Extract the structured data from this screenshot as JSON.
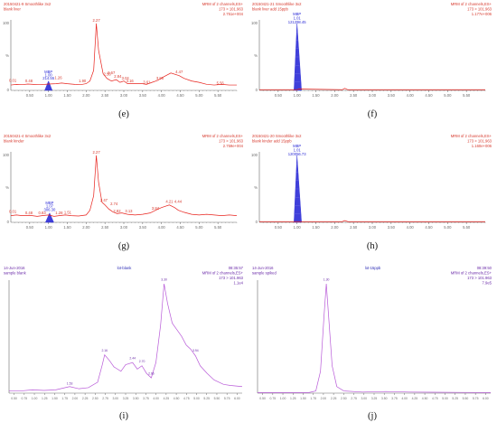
{
  "colors": {
    "trace": "#e8221c",
    "peak": "#2b2bd6",
    "axis": "#6a6a6a",
    "text_red": "#d73a2e",
    "text_blue": "#2d2db5",
    "trace_purple": "#b85ad8",
    "text_purple": "#6a2aa8"
  },
  "chart_data": [
    {
      "id": "e",
      "caption": "(e)",
      "type": "line",
      "style": "masslynx",
      "header_left": [
        "20150421-9 Smoothlike 3x2",
        "blank liver"
      ],
      "header_right": [
        "MRM of 2 channels,ES+",
        "173 > 101.963",
        "2.751e+004"
      ],
      "xlim": [
        0,
        6.0
      ],
      "ylim": [
        0,
        100
      ],
      "xticks": [
        "0.50",
        "1.00",
        "1.50",
        "2.00",
        "2.50",
        "3.00",
        "3.50",
        "4.00",
        "4.50",
        "5.00",
        "5.50"
      ],
      "y_axis_labels": [
        "100",
        "%",
        "0"
      ],
      "trace_color": "trace",
      "points": [
        [
          0,
          8
        ],
        [
          0.15,
          9
        ],
        [
          0.3,
          8.5
        ],
        [
          0.45,
          9.5
        ],
        [
          0.6,
          9
        ],
        [
          0.75,
          8.5
        ],
        [
          0.9,
          9
        ],
        [
          1.0,
          9.5
        ],
        [
          1.2,
          10
        ],
        [
          1.35,
          11
        ],
        [
          1.5,
          10
        ],
        [
          1.7,
          9
        ],
        [
          1.85,
          8.5
        ],
        [
          2.0,
          10
        ],
        [
          2.1,
          14
        ],
        [
          2.2,
          30
        ],
        [
          2.27,
          100
        ],
        [
          2.33,
          60
        ],
        [
          2.45,
          25
        ],
        [
          2.55,
          18
        ],
        [
          2.67,
          14
        ],
        [
          2.8,
          16
        ],
        [
          2.9,
          12
        ],
        [
          3.0,
          14
        ],
        [
          3.1,
          10
        ],
        [
          3.3,
          10
        ],
        [
          3.5,
          10
        ],
        [
          3.6,
          9
        ],
        [
          3.75,
          12
        ],
        [
          3.9,
          15
        ],
        [
          4.05,
          20
        ],
        [
          4.25,
          26
        ],
        [
          4.47,
          22
        ],
        [
          4.6,
          18
        ],
        [
          4.8,
          14
        ],
        [
          5.0,
          12
        ],
        [
          5.2,
          9
        ],
        [
          5.4,
          8
        ],
        [
          5.6,
          9
        ],
        [
          5.8,
          8
        ],
        [
          6.0,
          8
        ]
      ],
      "filled_peak": {
        "x": [
          0.9,
          1.0,
          1.1
        ],
        "top": 14
      },
      "labels": [
        {
          "text": "0.01",
          "x": 0.05,
          "y": 13
        },
        {
          "text": "0.48",
          "x": 0.48,
          "y": 12
        },
        {
          "text": "MBP",
          "x": 1.0,
          "y": 26,
          "color": "peak"
        },
        {
          "text": "1.00",
          "x": 1.0,
          "y": 21,
          "color": "peak"
        },
        {
          "text": "214.55",
          "x": 1.0,
          "y": 16,
          "color": "peak"
        },
        {
          "text": "1.26",
          "x": 1.26,
          "y": 17
        },
        {
          "text": "1.90",
          "x": 1.9,
          "y": 12
        },
        {
          "text": "2.27",
          "x": 2.27,
          "y": 103
        },
        {
          "text": "2.56",
          "x": 2.56,
          "y": 22
        },
        {
          "text": "2.67",
          "x": 2.67,
          "y": 24
        },
        {
          "text": "2.84",
          "x": 2.84,
          "y": 19
        },
        {
          "text": "3.04",
          "x": 3.04,
          "y": 16
        },
        {
          "text": "3.16",
          "x": 3.16,
          "y": 12
        },
        {
          "text": "3.61",
          "x": 3.61,
          "y": 10
        },
        {
          "text": "3.96",
          "x": 3.96,
          "y": 16
        },
        {
          "text": "4.47",
          "x": 4.47,
          "y": 26
        },
        {
          "text": "5.56",
          "x": 5.56,
          "y": 9
        }
      ]
    },
    {
      "id": "f",
      "caption": "(f)",
      "type": "line",
      "style": "masslynx",
      "header_left": [
        "20150421-21 Smoothlike 3x2",
        "blank liver add 15ppb"
      ],
      "header_right": [
        "MRM of 2 channels,ES+",
        "173 > 101.963",
        "1.177e+006"
      ],
      "xlim": [
        0,
        6.0
      ],
      "ylim": [
        0,
        100
      ],
      "xticks": [
        "0.50",
        "1.00",
        "1.50",
        "2.00",
        "2.50",
        "3.00",
        "3.50",
        "4.00",
        "4.50",
        "5.00",
        "5.50"
      ],
      "y_axis_labels": [
        "100",
        "%",
        "0"
      ],
      "trace_color": "trace",
      "points": [
        [
          0,
          1
        ],
        [
          0.8,
          1
        ],
        [
          1.0,
          1
        ],
        [
          1.05,
          2
        ],
        [
          2.2,
          1
        ],
        [
          2.27,
          3
        ],
        [
          2.35,
          1
        ],
        [
          3.0,
          1
        ],
        [
          6.0,
          1
        ]
      ],
      "filled_peak": {
        "x": [
          0.92,
          1.0,
          1.12
        ],
        "top": 100
      },
      "labels": [
        {
          "text": "MBP",
          "x": 1.0,
          "y": 112,
          "color": "peak"
        },
        {
          "text": "1.01",
          "x": 1.0,
          "y": 106,
          "color": "peak"
        },
        {
          "text": "121298.45",
          "x": 1.0,
          "y": 100,
          "color": "peak"
        }
      ]
    },
    {
      "id": "g",
      "caption": "(g)",
      "type": "line",
      "style": "masslynx",
      "header_left": [
        "20150421-4 Smoothlike 3x2",
        "blank kinder"
      ],
      "header_right": [
        "MRM of 2 channels,ES+",
        "173 > 101.963",
        "2.759e+004"
      ],
      "xlim": [
        0,
        6.0
      ],
      "ylim": [
        0,
        100
      ],
      "xticks": [
        "0.50",
        "1.00",
        "1.50",
        "2.00",
        "2.50",
        "3.00",
        "3.50",
        "4.00",
        "4.50",
        "5.00",
        "5.50"
      ],
      "y_axis_labels": [
        "100",
        "%",
        "0"
      ],
      "trace_color": "trace",
      "points": [
        [
          0,
          10
        ],
        [
          0.15,
          11
        ],
        [
          0.3,
          10
        ],
        [
          0.5,
          10.5
        ],
        [
          0.7,
          9
        ],
        [
          0.83,
          10
        ],
        [
          1.0,
          11
        ],
        [
          1.15,
          9
        ],
        [
          1.28,
          10
        ],
        [
          1.45,
          11
        ],
        [
          1.6,
          10
        ],
        [
          1.8,
          9.5
        ],
        [
          2.0,
          11
        ],
        [
          2.1,
          18
        ],
        [
          2.2,
          40
        ],
        [
          2.27,
          100
        ],
        [
          2.33,
          60
        ],
        [
          2.42,
          30
        ],
        [
          2.5,
          26
        ],
        [
          2.6,
          20
        ],
        [
          2.7,
          16
        ],
        [
          2.82,
          13
        ],
        [
          2.95,
          14
        ],
        [
          3.1,
          12
        ],
        [
          3.3,
          11
        ],
        [
          3.5,
          12
        ],
        [
          3.7,
          14
        ],
        [
          3.84,
          18
        ],
        [
          4.0,
          22
        ],
        [
          4.21,
          26
        ],
        [
          4.35,
          22
        ],
        [
          4.45,
          18
        ],
        [
          4.6,
          15
        ],
        [
          4.8,
          12
        ],
        [
          5.0,
          11
        ],
        [
          5.2,
          12
        ],
        [
          5.4,
          11
        ],
        [
          5.6,
          10
        ],
        [
          5.8,
          11
        ],
        [
          6.0,
          10
        ]
      ],
      "filled_peak": {
        "x": [
          0.92,
          1.03,
          1.14
        ],
        "top": 14
      },
      "labels": [
        {
          "text": "0.01",
          "x": 0.05,
          "y": 14
        },
        {
          "text": "0.48",
          "x": 0.48,
          "y": 12
        },
        {
          "text": "0.83",
          "x": 0.83,
          "y": 12
        },
        {
          "text": "MBP",
          "x": 1.03,
          "y": 27,
          "color": "peak"
        },
        {
          "text": "1.07",
          "x": 1.03,
          "y": 22,
          "color": "peak"
        },
        {
          "text": "306.30",
          "x": 1.03,
          "y": 17,
          "color": "peak"
        },
        {
          "text": "1.28",
          "x": 1.28,
          "y": 12
        },
        {
          "text": "1.51",
          "x": 1.51,
          "y": 13
        },
        {
          "text": "2.27",
          "x": 2.27,
          "y": 103
        },
        {
          "text": "2.47",
          "x": 2.47,
          "y": 31
        },
        {
          "text": "2.74",
          "x": 2.74,
          "y": 26
        },
        {
          "text": "2.82",
          "x": 2.82,
          "y": 15
        },
        {
          "text": "3.13",
          "x": 3.13,
          "y": 15
        },
        {
          "text": "3.84",
          "x": 3.84,
          "y": 19
        },
        {
          "text": "4.21",
          "x": 4.21,
          "y": 29
        },
        {
          "text": "4.44",
          "x": 4.44,
          "y": 29
        }
      ]
    },
    {
      "id": "h",
      "caption": "(h)",
      "type": "line",
      "style": "masslynx",
      "header_left": [
        "20150421-20 Smoothlike 3x2",
        "blank kinder add 15ppb"
      ],
      "header_right": [
        "MRM of 2 channels,ES+",
        "173 > 101.963",
        "1.160e+006"
      ],
      "xlim": [
        0,
        6.0
      ],
      "ylim": [
        0,
        100
      ],
      "xticks": [
        "0.50",
        "1.00",
        "1.50",
        "2.00",
        "2.50",
        "3.00",
        "3.50",
        "4.00",
        "4.50",
        "5.00",
        "5.50"
      ],
      "y_axis_labels": [
        "100",
        "%",
        "0"
      ],
      "trace_color": "trace",
      "points": [
        [
          0,
          1
        ],
        [
          0.8,
          1
        ],
        [
          1.0,
          1
        ],
        [
          2.2,
          1
        ],
        [
          2.27,
          2.5
        ],
        [
          2.35,
          1
        ],
        [
          6.0,
          1
        ]
      ],
      "filled_peak": {
        "x": [
          0.92,
          1.0,
          1.12
        ],
        "top": 100
      },
      "labels": [
        {
          "text": "MBP",
          "x": 1.0,
          "y": 112,
          "color": "peak"
        },
        {
          "text": "1.01",
          "x": 1.0,
          "y": 106,
          "color": "peak"
        },
        {
          "text": "120056.73",
          "x": 1.0,
          "y": 100,
          "color": "peak"
        }
      ]
    },
    {
      "id": "i",
      "caption": "(i)",
      "type": "line",
      "style": "agilent",
      "header_left": [
        "14-Jun-2016",
        "sample blank"
      ],
      "header_center": "lot-blank",
      "header_right": [
        "08:35:57",
        "MRM of 2 channels,ES+",
        "173 > 101.963",
        "1.1e4"
      ],
      "xlim": [
        0,
        10
      ],
      "ylim": [
        0,
        100
      ],
      "xticks": [
        "0.50",
        "0.75",
        "1.00",
        "1.25",
        "1.50",
        "1.75",
        "2.00",
        "2.25",
        "2.50",
        "2.75",
        "3.00",
        "3.25",
        "3.50",
        "3.75",
        "4.00",
        "4.25",
        "4.50",
        "4.75",
        "5.00",
        "5.25",
        "5.50",
        "5.75",
        "6.00"
      ],
      "trace_color": "trace_purple",
      "points": [
        [
          0,
          2
        ],
        [
          0.5,
          2
        ],
        [
          1.0,
          3
        ],
        [
          1.5,
          2.5
        ],
        [
          2.0,
          3
        ],
        [
          2.6,
          6
        ],
        [
          3.0,
          4
        ],
        [
          3.4,
          5
        ],
        [
          3.8,
          10
        ],
        [
          4.0,
          26
        ],
        [
          4.1,
          35
        ],
        [
          4.3,
          30
        ],
        [
          4.5,
          24
        ],
        [
          4.8,
          20
        ],
        [
          5.0,
          26
        ],
        [
          5.3,
          28
        ],
        [
          5.5,
          22
        ],
        [
          5.7,
          25
        ],
        [
          5.9,
          18
        ],
        [
          6.1,
          14
        ],
        [
          6.3,
          28
        ],
        [
          6.5,
          62
        ],
        [
          6.65,
          100
        ],
        [
          6.8,
          82
        ],
        [
          7.0,
          64
        ],
        [
          7.2,
          58
        ],
        [
          7.4,
          52
        ],
        [
          7.6,
          44
        ],
        [
          7.8,
          40
        ],
        [
          8.0,
          34
        ],
        [
          8.2,
          25
        ],
        [
          8.5,
          18
        ],
        [
          8.8,
          12
        ],
        [
          9.2,
          8
        ],
        [
          9.5,
          7
        ],
        [
          10,
          6
        ]
      ],
      "labels": [
        {
          "text": "1.53",
          "x": 2.6,
          "y": 8
        },
        {
          "text": "2.16",
          "x": 4.1,
          "y": 38
        },
        {
          "text": "2.44",
          "x": 5.3,
          "y": 31
        },
        {
          "text": "2.70",
          "x": 5.7,
          "y": 28
        },
        {
          "text": "2.96",
          "x": 6.1,
          "y": 17
        },
        {
          "text": "3.30",
          "x": 6.65,
          "y": 103
        },
        {
          "text": "3.94",
          "x": 8.0,
          "y": 38
        }
      ]
    },
    {
      "id": "j",
      "caption": "(j)",
      "type": "line",
      "style": "agilent",
      "header_left": [
        "14-Jun-2016",
        "sample spiked"
      ],
      "header_center": "lot-15ppb",
      "header_right": [
        "08:39:50",
        "MRM of 2 channels,ES+",
        "173 > 101.963",
        "7.9e5"
      ],
      "xlim": [
        0,
        10
      ],
      "ylim": [
        0,
        100
      ],
      "xticks": [
        "0.50",
        "0.75",
        "1.00",
        "1.25",
        "1.50",
        "1.75",
        "2.00",
        "2.25",
        "2.50",
        "2.75",
        "3.00",
        "3.25",
        "3.50",
        "3.75",
        "4.00",
        "4.25",
        "4.50",
        "4.75",
        "5.00",
        "5.25",
        "5.50",
        "5.75",
        "6.00"
      ],
      "trace_color": "trace_purple",
      "points": [
        [
          0,
          0.5
        ],
        [
          2.2,
          0.5
        ],
        [
          2.5,
          2
        ],
        [
          2.7,
          20
        ],
        [
          2.85,
          70
        ],
        [
          2.95,
          100
        ],
        [
          3.05,
          70
        ],
        [
          3.2,
          25
        ],
        [
          3.4,
          6
        ],
        [
          3.7,
          2
        ],
        [
          4.5,
          1
        ],
        [
          5.5,
          1.5
        ],
        [
          6.5,
          1
        ],
        [
          7.5,
          0.8
        ],
        [
          10,
          0.5
        ]
      ],
      "labels": [
        {
          "text": "1.30",
          "x": 2.95,
          "y": 103
        }
      ]
    }
  ]
}
